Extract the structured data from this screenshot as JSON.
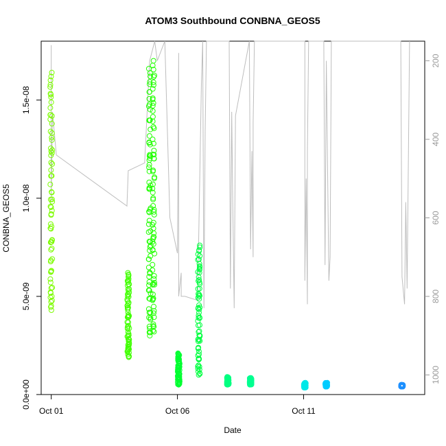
{
  "chart_data": {
    "type": "scatter",
    "title": "ATOM3 Southbound CONBNA_GEOS5",
    "xlabel": "Date",
    "ylabel": "CONBNA_GEOS5",
    "ylim": [
      0,
      1.8e-08
    ],
    "xlim_days": [
      -0.4,
      14.8
    ],
    "x_ticks": [
      {
        "day": 0,
        "label": "Oct 01"
      },
      {
        "day": 5,
        "label": "Oct 06"
      },
      {
        "day": 10,
        "label": "Oct 11"
      }
    ],
    "y_ticks": [
      {
        "value": 0,
        "label": "0.0e+00"
      },
      {
        "value": 5e-09,
        "label": "5.0e-09"
      },
      {
        "value": 1e-08,
        "label": "1.0e-08"
      },
      {
        "value": 1.5e-08,
        "label": "1.5e-08"
      }
    ],
    "right_axis": {
      "label": "",
      "inverted": true,
      "range": [
        150,
        1050
      ],
      "ticks": [
        {
          "value": 200,
          "label": "200"
        },
        {
          "value": 400,
          "label": "400"
        },
        {
          "value": 600,
          "label": "600"
        },
        {
          "value": 800,
          "label": "800"
        },
        {
          "value": 1000,
          "label": "1000"
        }
      ]
    },
    "grid": false,
    "legend": "none",
    "series": [
      {
        "x_day": 0.0,
        "y_min": 4.3e-09,
        "y_max": 1.64e-08,
        "color": "#7cfc00"
      },
      {
        "x_day": 3.05,
        "y_min": 1.9e-09,
        "y_max": 6.2e-09,
        "color": "#40ff00"
      },
      {
        "x_day": 3.9,
        "y_min": 3e-09,
        "y_max": 1.66e-08,
        "color": "#20ff00"
      },
      {
        "x_day": 4.05,
        "y_min": 3.2e-09,
        "y_max": 1.7e-08,
        "color": "#20ff00"
      },
      {
        "x_day": 5.05,
        "y_min": 5e-10,
        "y_max": 2.1e-09,
        "color": "#00ff30"
      },
      {
        "x_day": 5.85,
        "y_min": 1e-09,
        "y_max": 7.6e-09,
        "color": "#00ff40"
      },
      {
        "x_day": 7.0,
        "y_min": 5e-10,
        "y_max": 9e-10,
        "color": "#00ff80"
      },
      {
        "x_day": 7.9,
        "y_min": 5e-10,
        "y_max": 8.5e-10,
        "color": "#00ff90"
      },
      {
        "x_day": 10.05,
        "y_min": 3.5e-10,
        "y_max": 6e-10,
        "color": "#00e8e8"
      },
      {
        "x_day": 10.9,
        "y_min": 4e-10,
        "y_max": 6e-10,
        "color": "#00ccff"
      },
      {
        "x_day": 13.9,
        "y_min": 4e-10,
        "y_max": 5e-10,
        "color": "#1e90ff"
      }
    ],
    "pressure_line_color": "#bdbdbd",
    "pressure_profile": [
      [
        0.0,
        160
      ],
      [
        0.0,
        280
      ],
      [
        0.0,
        560
      ],
      [
        0.05,
        330
      ],
      [
        0.2,
        440
      ],
      [
        3.0,
        570
      ],
      [
        3.05,
        480
      ],
      [
        3.7,
        460
      ],
      [
        3.9,
        200
      ],
      [
        4.1,
        150
      ],
      [
        4.2,
        200
      ],
      [
        4.5,
        150
      ],
      [
        4.7,
        600
      ],
      [
        5.0,
        690
      ],
      [
        5.05,
        180
      ],
      [
        5.05,
        800
      ],
      [
        5.15,
        740
      ],
      [
        5.15,
        800
      ],
      [
        5.3,
        800
      ],
      [
        5.8,
        810
      ],
      [
        5.95,
        260
      ],
      [
        6.0,
        120
      ],
      [
        6.05,
        830
      ],
      [
        6.1,
        380
      ],
      [
        6.15,
        110
      ],
      [
        7.05,
        120
      ],
      [
        7.1,
        780
      ],
      [
        7.15,
        330
      ],
      [
        7.2,
        600
      ],
      [
        7.25,
        830
      ],
      [
        7.3,
        340
      ],
      [
        7.85,
        120
      ],
      [
        7.9,
        680
      ],
      [
        7.95,
        430
      ],
      [
        8.0,
        700
      ],
      [
        8.0,
        360
      ],
      [
        8.05,
        120
      ],
      [
        10.05,
        110
      ],
      [
        10.05,
        760
      ],
      [
        10.1,
        500
      ],
      [
        10.15,
        820
      ],
      [
        10.15,
        430
      ],
      [
        10.2,
        120
      ],
      [
        10.8,
        120
      ],
      [
        10.85,
        720
      ],
      [
        10.9,
        200
      ],
      [
        11.0,
        760
      ],
      [
        11.05,
        700
      ],
      [
        11.1,
        120
      ],
      [
        13.85,
        120
      ],
      [
        13.9,
        750
      ],
      [
        14.0,
        820
      ],
      [
        14.05,
        560
      ],
      [
        14.1,
        780
      ],
      [
        14.2,
        120
      ]
    ]
  }
}
